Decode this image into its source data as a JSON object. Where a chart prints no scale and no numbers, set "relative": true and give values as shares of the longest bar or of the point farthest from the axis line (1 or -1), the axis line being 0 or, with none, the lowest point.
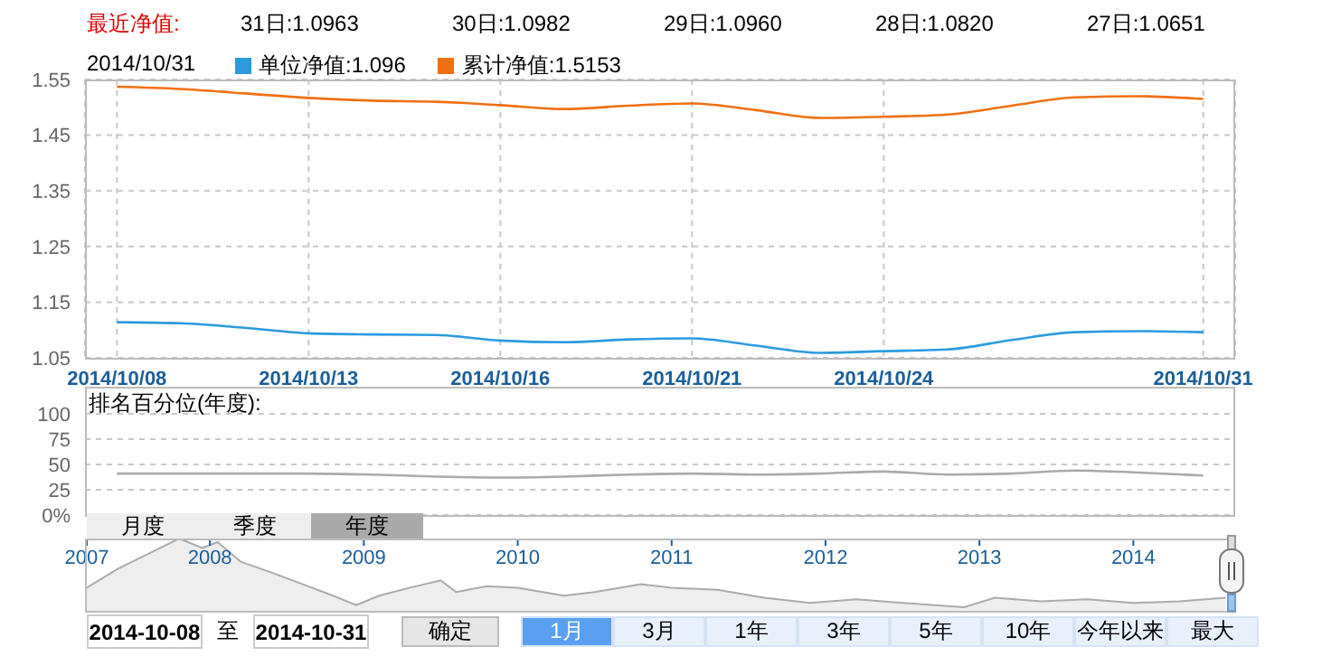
{
  "chart_data": [
    {
      "type": "line",
      "annotations": [
        "最近净值:",
        "31日:1.0963",
        "30日:1.0982",
        "29日:1.0960",
        "28日:1.0820",
        "27日:1.0651",
        "2014/10/31"
      ],
      "categories": [
        "2014/10/08",
        null,
        null,
        "2014/10/13",
        null,
        null,
        "2014/10/16",
        null,
        null,
        "2014/10/21",
        null,
        null,
        "2014/10/24",
        null,
        null,
        null,
        null,
        "2014/10/31"
      ],
      "series": [
        {
          "name": "单位净值:1.096",
          "color": "#2b9ae0",
          "values": [
            1.114,
            1.112,
            1.104,
            1.094,
            1.092,
            1.091,
            1.081,
            1.078,
            1.083,
            1.085,
            1.072,
            1.059,
            1.062,
            1.065,
            1.082,
            1.096,
            1.098,
            1.096
          ]
        },
        {
          "name": "累计净值:1.5153",
          "color": "#f07010",
          "values": [
            1.537,
            1.533,
            1.525,
            1.517,
            1.512,
            1.51,
            1.504,
            1.497,
            1.503,
            1.507,
            1.495,
            1.481,
            1.483,
            1.487,
            1.503,
            1.518,
            1.52,
            1.515
          ]
        }
      ],
      "ylim": [
        1.05,
        1.55
      ],
      "yticks": [
        1.05,
        1.15,
        1.25,
        1.35,
        1.45,
        1.55
      ],
      "grid": true,
      "legend": "top left"
    },
    {
      "type": "line",
      "title": "排名百分位(年度):",
      "categories": [
        null,
        null,
        null,
        null,
        null,
        null,
        null,
        null,
        null,
        null,
        null,
        null,
        null,
        null,
        null,
        null,
        null,
        null
      ],
      "series": [
        {
          "color": "#aaaaaa",
          "values": [
            41,
            41,
            41,
            41,
            40,
            38,
            37,
            38,
            40,
            41,
            40,
            41,
            43,
            40,
            41,
            44,
            42,
            39
          ]
        }
      ],
      "ylim": [
        0,
        100
      ],
      "yticks": [
        {
          "value": 0,
          "label": "0%"
        },
        25,
        50,
        75,
        100
      ],
      "grid": "y",
      "tick_labels": "y"
    },
    {
      "type": "area",
      "relative": true,
      "x": [
        2007.2,
        2007.4,
        2007.6,
        2007.8,
        2007.95,
        2008.05,
        2008.2,
        2008.4,
        2008.6,
        2008.8,
        2008.95,
        2009.1,
        2009.3,
        2009.5,
        2009.6,
        2009.8,
        2010.0,
        2010.3,
        2010.5,
        2010.8,
        2011.0,
        2011.3,
        2011.6,
        2011.9,
        2012.2,
        2012.5,
        2012.9,
        2013.1,
        2013.4,
        2013.7,
        2014.0,
        2014.3,
        2014.6
      ],
      "series": [
        {
          "color": "#aaaaaa",
          "values": [
            0.32,
            0.58,
            0.79,
            1,
            0.87,
            0.95,
            0.68,
            0.53,
            0.37,
            0.21,
            0.08,
            0.21,
            0.32,
            0.42,
            0.26,
            0.34,
            0.32,
            0.21,
            0.26,
            0.37,
            0.32,
            0.29,
            0.18,
            0.11,
            0.16,
            0.11,
            0.05,
            0.18,
            0.13,
            0.16,
            0.11,
            0.13,
            0.18
          ]
        }
      ],
      "xlim": [
        2007.2,
        2014.65
      ],
      "xticks": [
        {
          "value": 2007.2,
          "label": "2007"
        },
        2008,
        2009,
        2010,
        2011,
        2012,
        2013,
        2014
      ],
      "tick_labels": "x"
    },
    {
      "type": "other",
      "annotations": [
        "月度",
        "季度",
        "年度",
        "2014-10-08",
        "至",
        "2014-10-31",
        "确定",
        "1月",
        "3月",
        "1年",
        "3年",
        "5年",
        "10年",
        "今年以来",
        "最大"
      ]
    }
  ]
}
